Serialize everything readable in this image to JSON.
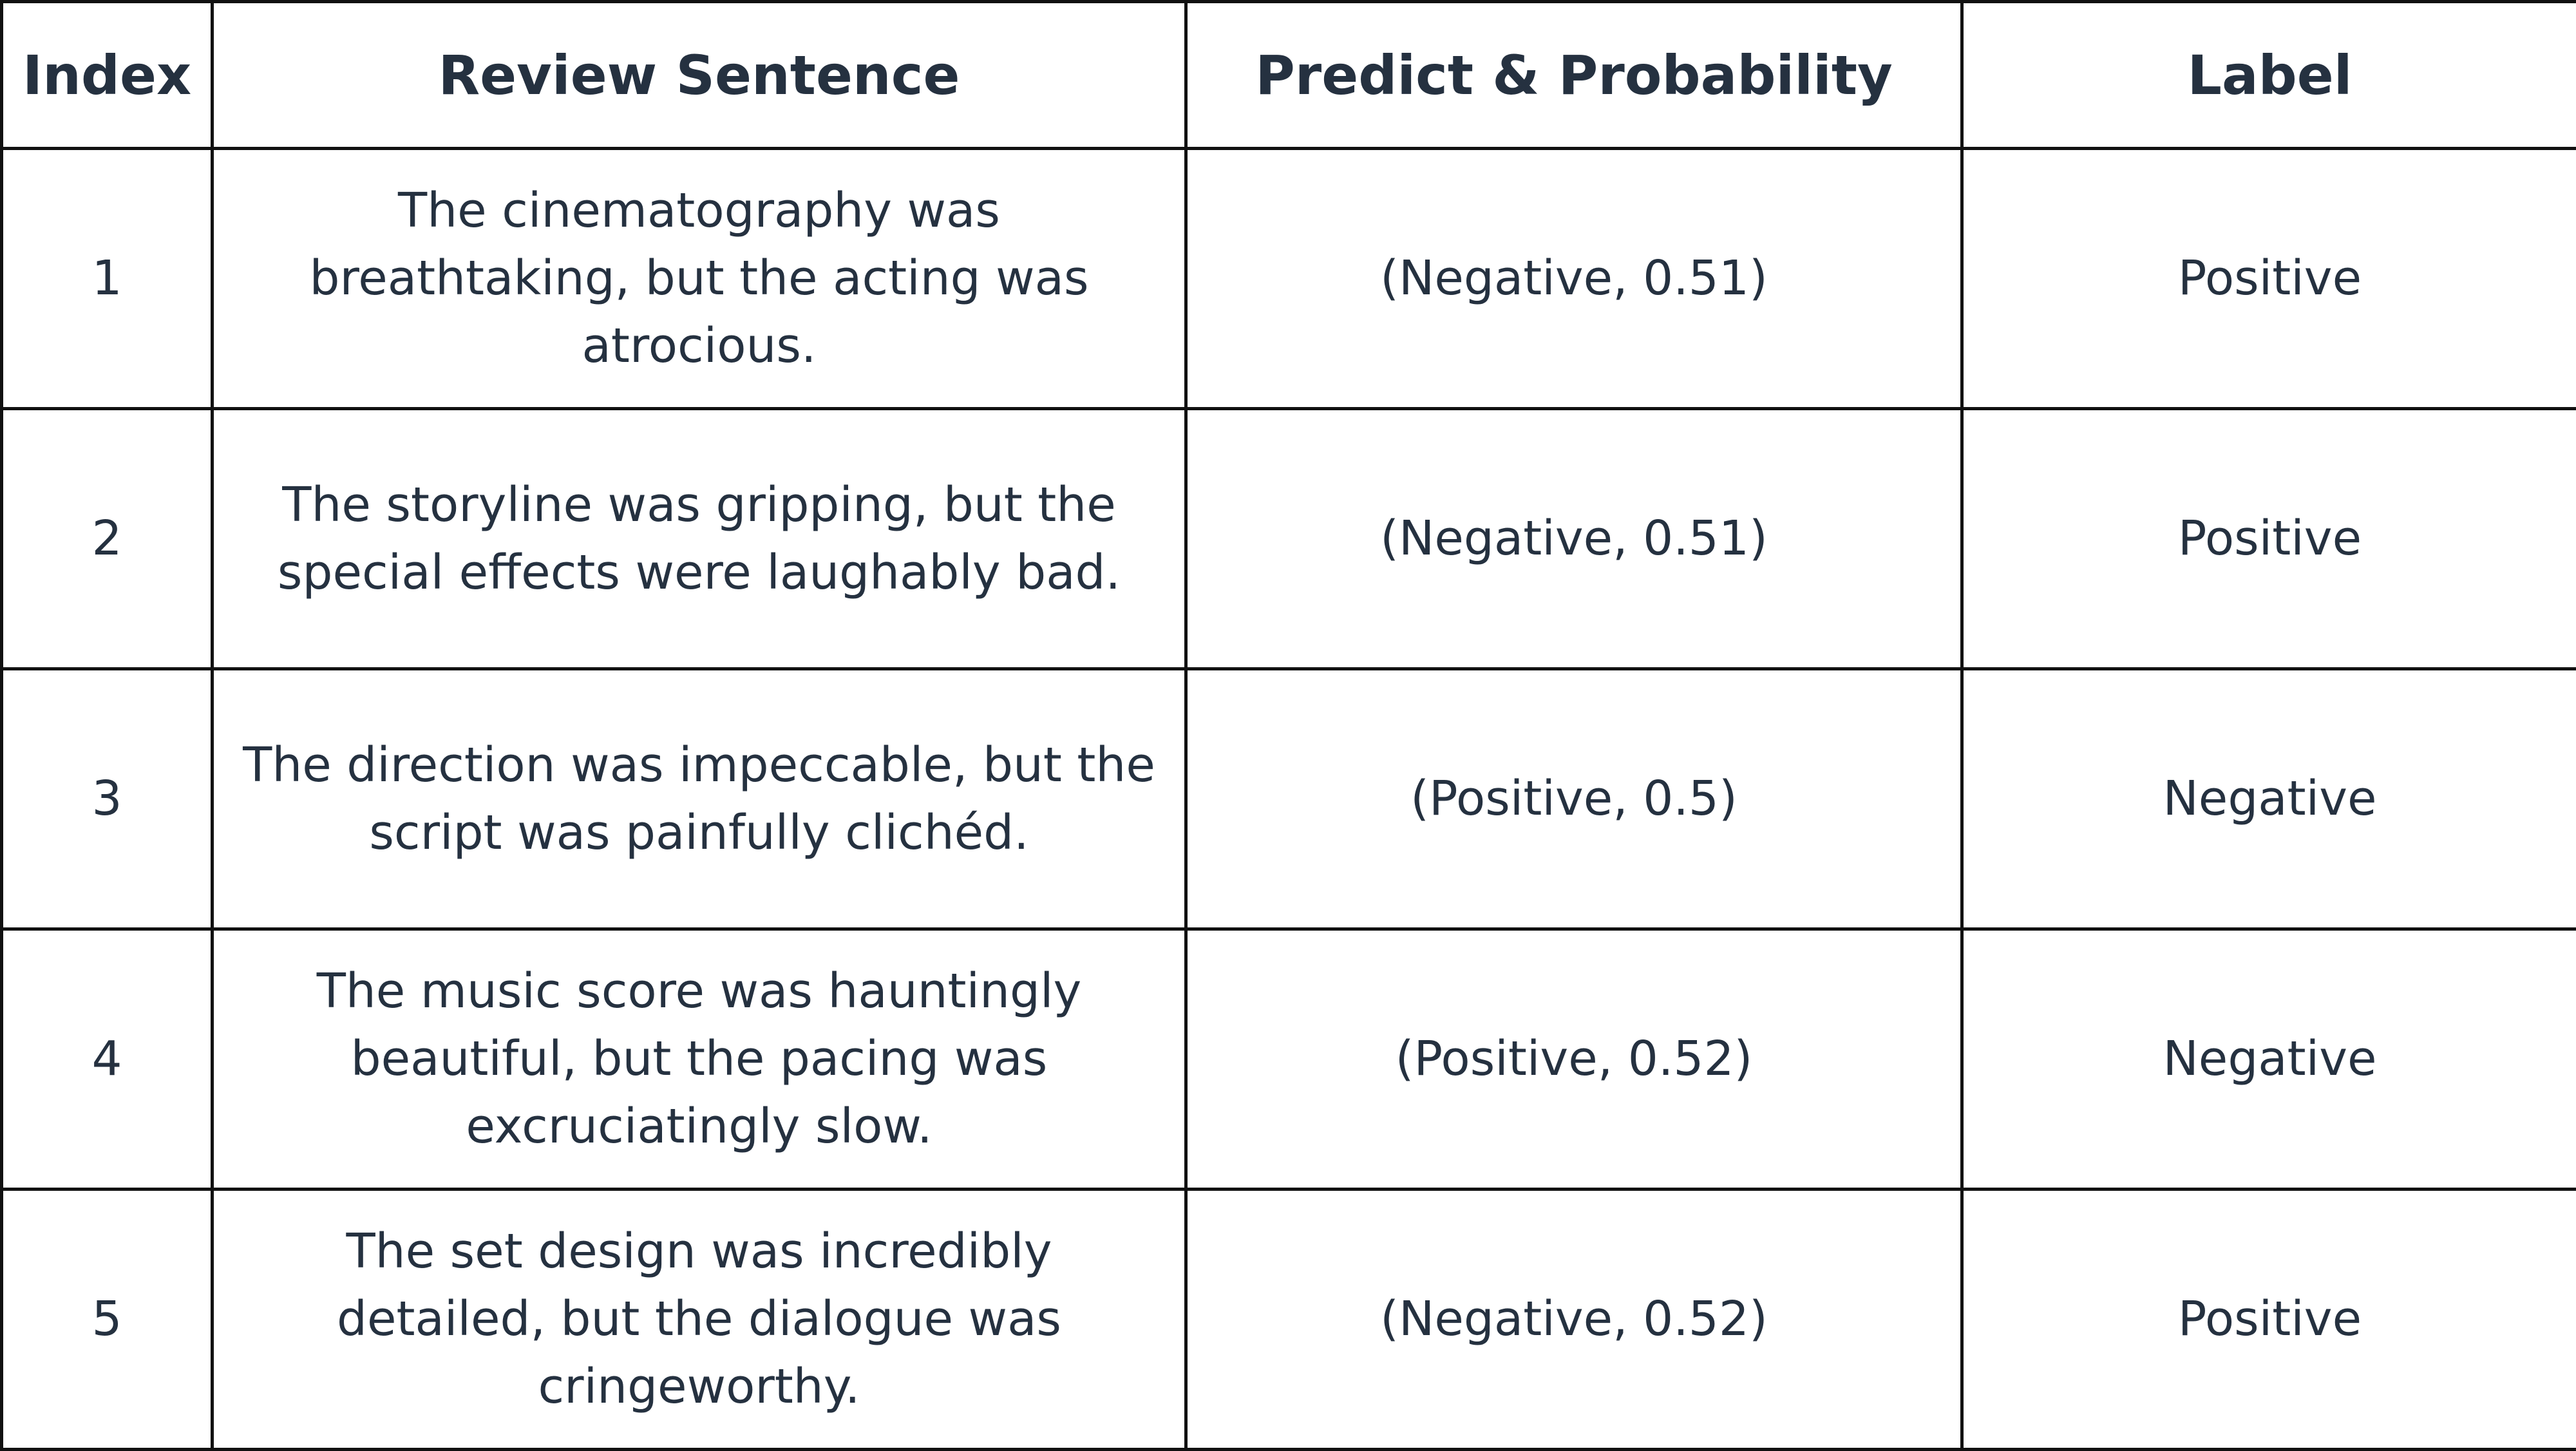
{
  "table": {
    "headers": {
      "index": "Index",
      "sentence": "Review Sentence",
      "prediction": "Predict & Probability",
      "label": "Label"
    },
    "rows": [
      {
        "index": "1",
        "sentence": "The cinematography was breathtaking, but the acting was atrocious.",
        "prediction": "(Negative, 0.51)",
        "label": "Positive"
      },
      {
        "index": "2",
        "sentence": "The storyline was gripping, but the special effects were laughably bad.",
        "prediction": "(Negative, 0.51)",
        "label": "Positive"
      },
      {
        "index": "3",
        "sentence": "The direction was impeccable, but the script was painfully clichéd.",
        "prediction": "(Positive, 0.5)",
        "label": "Negative"
      },
      {
        "index": "4",
        "sentence": "The music score was hauntingly beautiful, but the pacing was excruciatingly slow.",
        "prediction": "(Positive, 0.52)",
        "label": "Negative"
      },
      {
        "index": "5",
        "sentence": "The set design was incredibly detailed, but the dialogue was cringeworthy.",
        "prediction": "(Negative, 0.52)",
        "label": "Positive"
      }
    ]
  },
  "colors": {
    "text": "#253140",
    "border": "#111111",
    "background": "#ffffff"
  }
}
